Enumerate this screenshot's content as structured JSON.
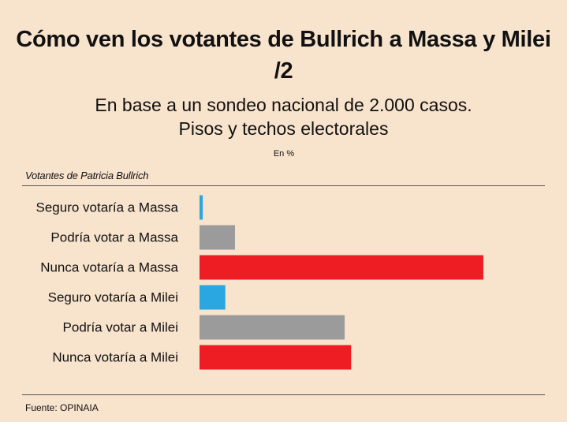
{
  "header": {
    "title": "Cómo ven los votantes de Bullrich a Massa y Milei /2",
    "subtitle_line1": "En base a un sondeo nacional de 2.000 casos.",
    "subtitle_line2": "Pisos y techos electorales",
    "unit": "En %"
  },
  "group_label": "Votantes de Patricia Bullrich",
  "source": "Fuente: OPINAIA",
  "colors": {
    "background": "#f8e3cc",
    "seguro": "#2aa7e0",
    "podria": "#9b9b9b",
    "nunca": "#ee1d24"
  },
  "chart_data": {
    "type": "bar",
    "orientation": "horizontal",
    "categories": [
      "Seguro votaría a Massa",
      "Podría votar a Massa",
      "Nunca votaría a Massa",
      "Seguro votaría a Milei",
      "Podría votar a Milei",
      "Nunca votaría a Milei"
    ],
    "values": [
      1,
      11,
      88,
      8,
      45,
      47
    ],
    "bar_colors": [
      "seguro",
      "podria",
      "nunca",
      "seguro",
      "podria",
      "nunca"
    ],
    "xlim": [
      0,
      100
    ],
    "grid": false,
    "legend": "none"
  }
}
